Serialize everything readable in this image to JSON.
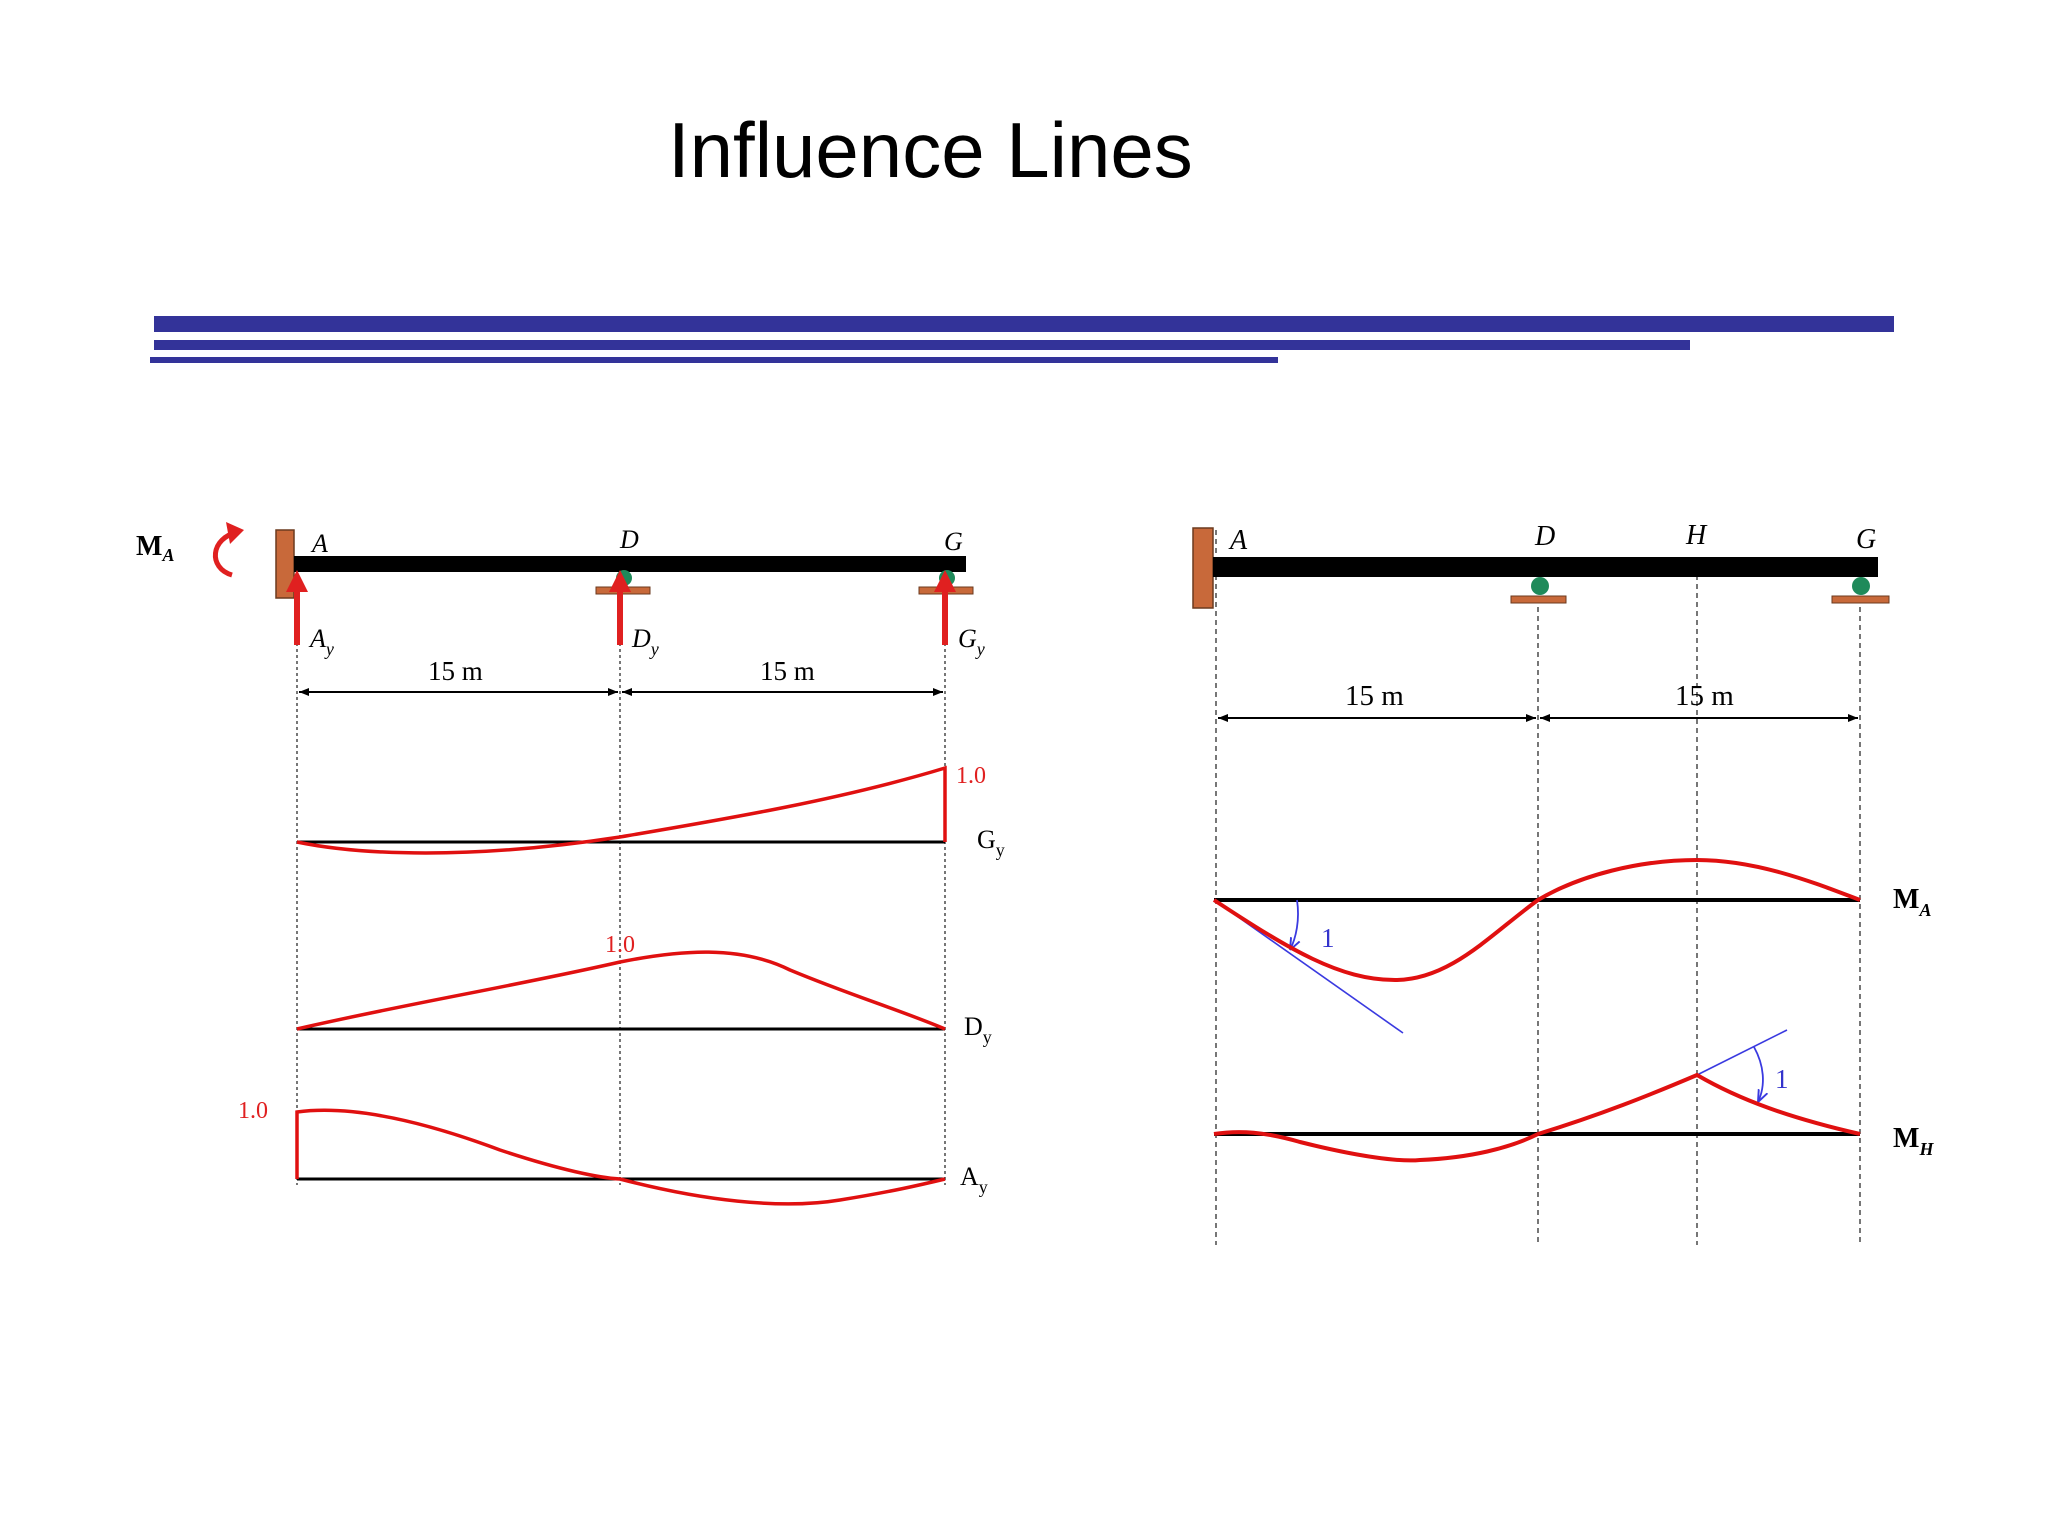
{
  "title": "Influence Lines",
  "colors": {
    "rule": "#333399",
    "curve": "#e01010",
    "support": "#c8693a",
    "pin": "#1f8a5a",
    "tangent": "#3a3ae0"
  },
  "left": {
    "moment_label": "M",
    "moment_sub": "A",
    "points": {
      "A": "A",
      "D": "D",
      "G": "G"
    },
    "reactions": [
      {
        "base": "A",
        "sub": "y"
      },
      {
        "base": "D",
        "sub": "y"
      },
      {
        "base": "G",
        "sub": "y"
      }
    ],
    "span1": "15 m",
    "span2": "15 m",
    "lines": {
      "Gy": {
        "base": "G",
        "sub": "y",
        "value": "1.0"
      },
      "Dy": {
        "base": "D",
        "sub": "y",
        "value": "1.0"
      },
      "Ay": {
        "base": "A",
        "sub": "y",
        "value": "1.0"
      }
    }
  },
  "right": {
    "points": {
      "A": "A",
      "D": "D",
      "H": "H",
      "G": "G"
    },
    "span1": "15 m",
    "span2": "15 m",
    "lines": {
      "MA": {
        "base": "M",
        "sub": "A",
        "slope": "1"
      },
      "MH": {
        "base": "M",
        "sub": "H",
        "slope": "1"
      }
    }
  }
}
